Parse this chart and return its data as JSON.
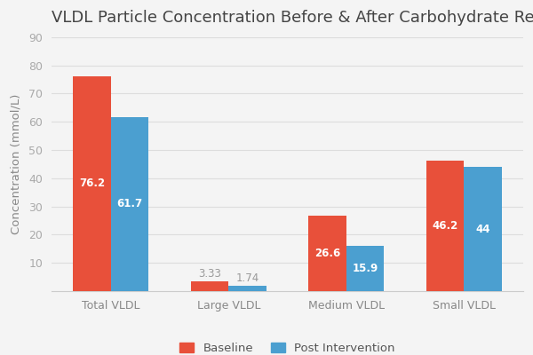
{
  "title": "VLDL Particle Concentration Before & After Carbohydrate Restriction",
  "ylabel": "Concentration (mmol/L)",
  "categories": [
    "Total VLDL",
    "Large VLDL",
    "Medium VLDL",
    "Small VLDL"
  ],
  "baseline": [
    76.2,
    3.33,
    26.6,
    46.2
  ],
  "post_intervention": [
    61.7,
    1.74,
    15.9,
    44
  ],
  "baseline_color": "#E8503A",
  "post_color": "#4B9FD0",
  "background_color": "#F4F4F4",
  "plot_bg_color": "#F4F4F4",
  "ylim": [
    0,
    90
  ],
  "yticks": [
    10,
    20,
    30,
    40,
    50,
    60,
    70,
    80,
    90
  ],
  "bar_width": 0.32,
  "title_fontsize": 13,
  "label_fontsize": 9.5,
  "tick_fontsize": 9,
  "legend_labels": [
    "Baseline",
    "Post Intervention"
  ],
  "value_label_fontsize": 8.5,
  "grid_color": "#DDDDDD",
  "small_bar_threshold": 8
}
